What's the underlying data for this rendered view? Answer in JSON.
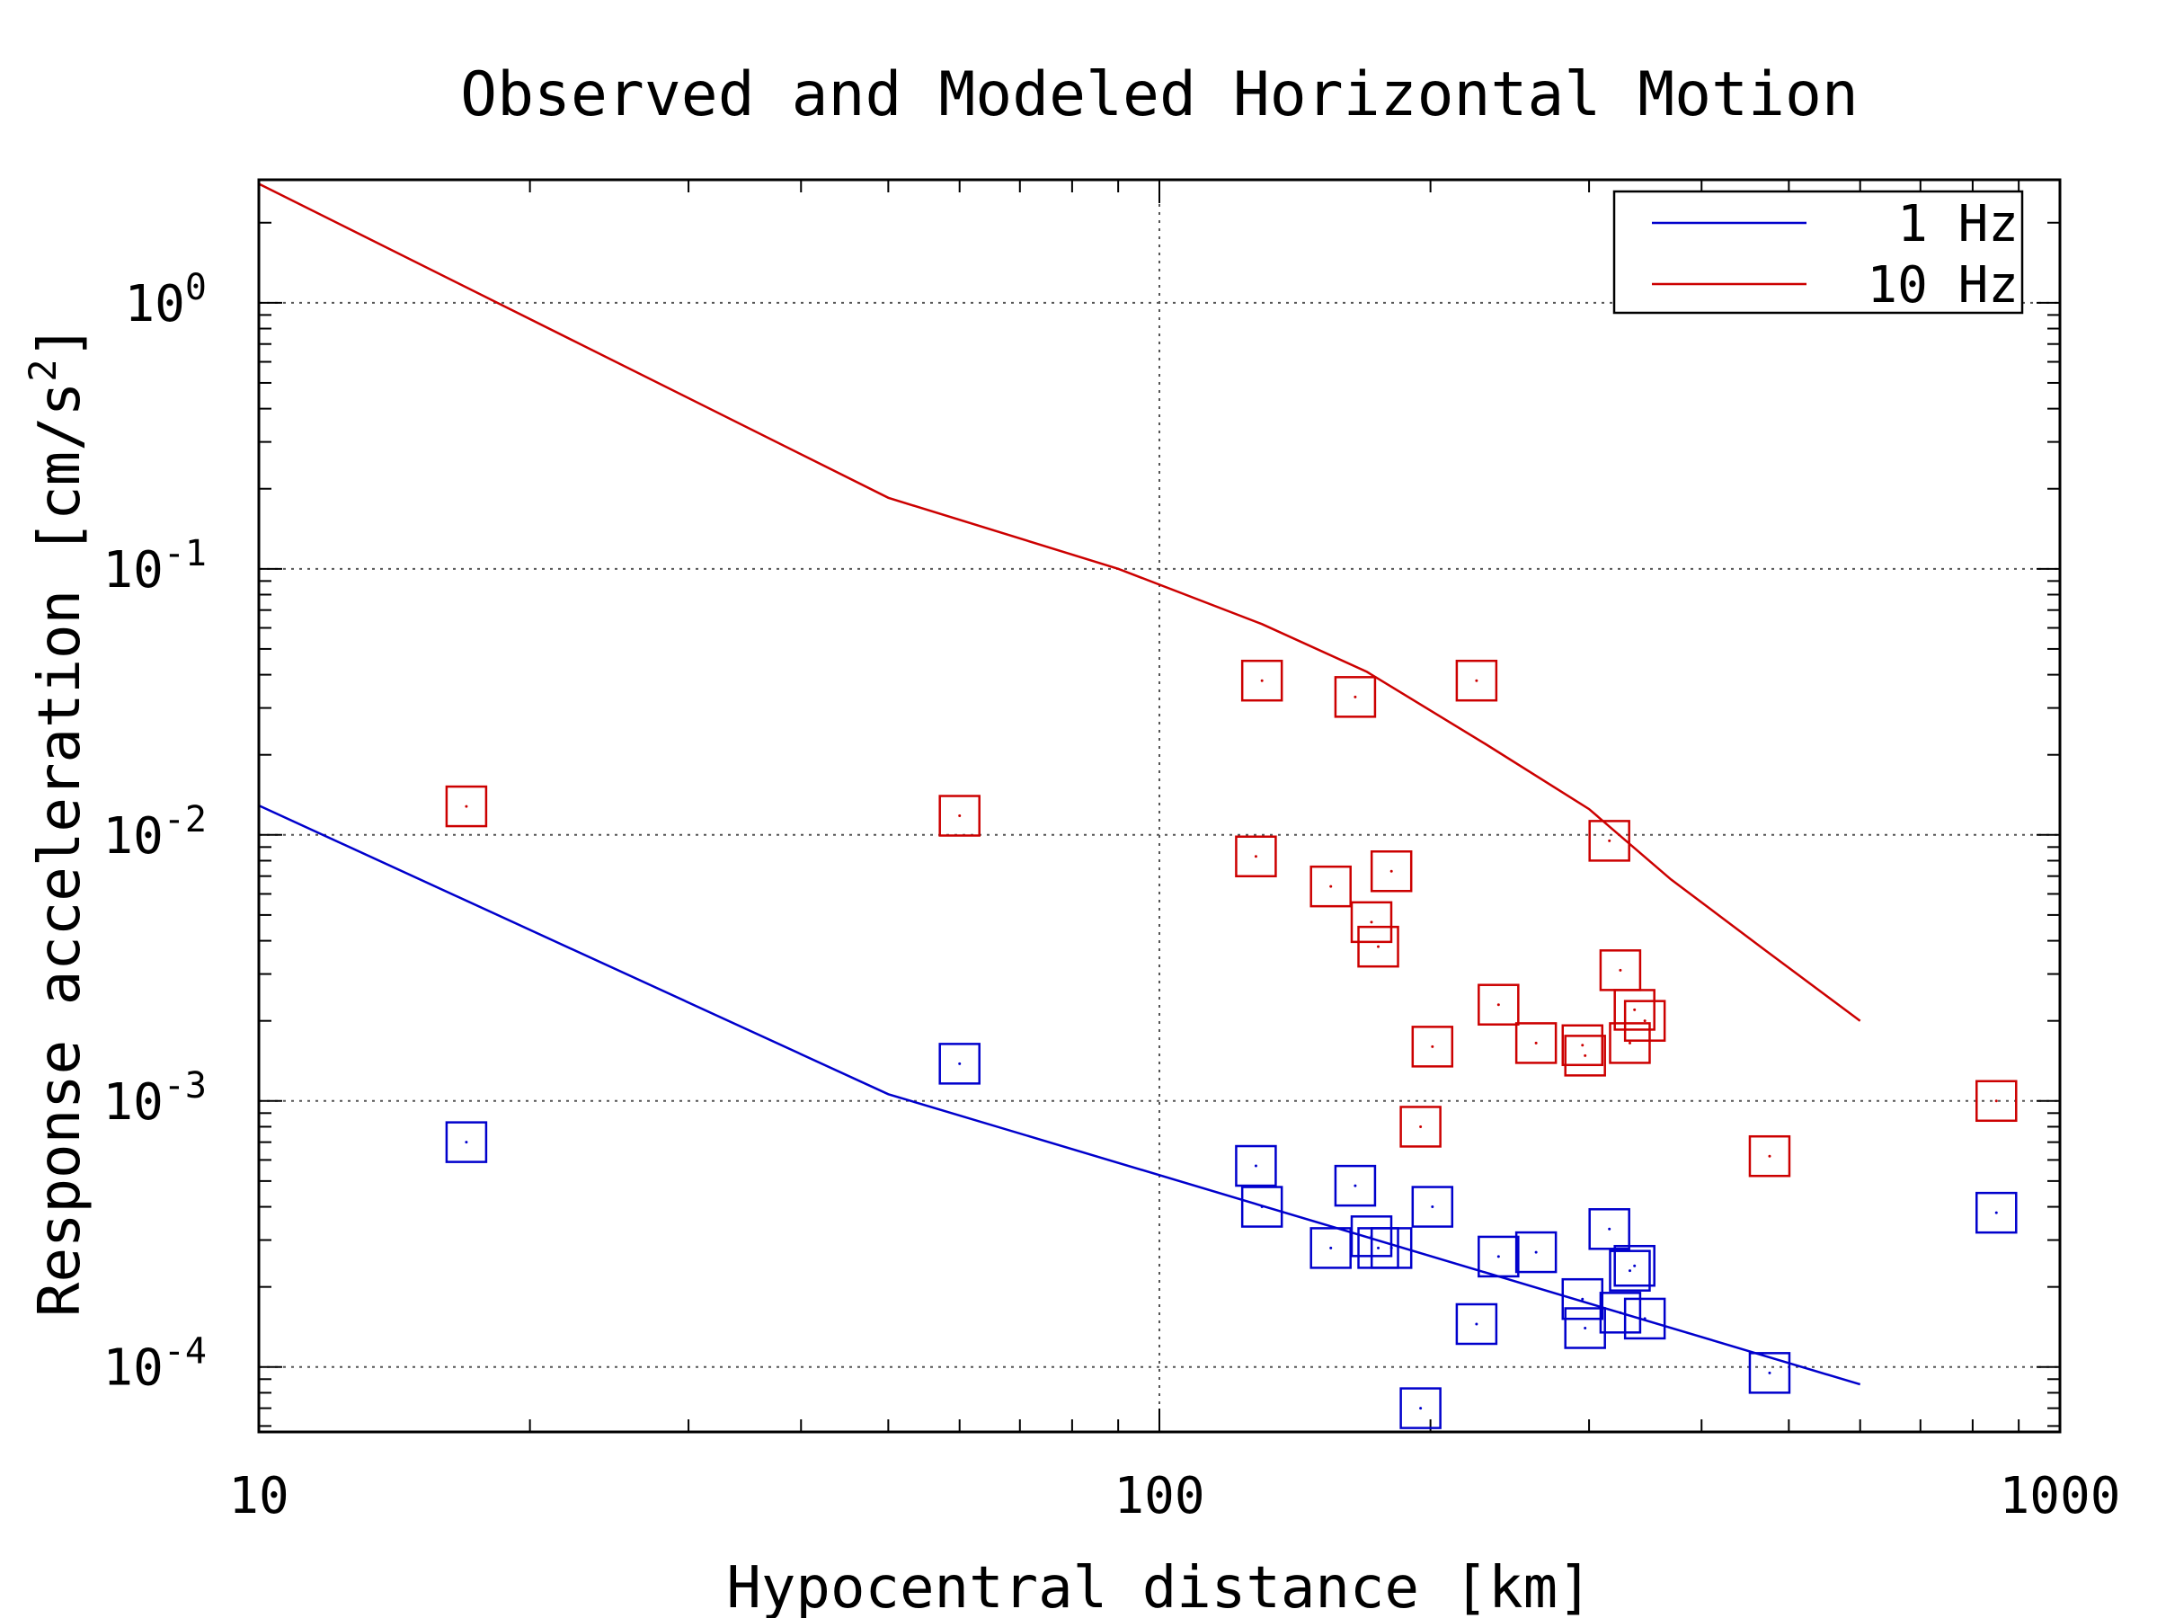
{
  "chart_data": {
    "type": "scatter",
    "title": "Observed and Modeled Horizontal Motion",
    "xlabel": "Hypocentral distance [km]",
    "ylabel_main": "Response acceleration [cm/s",
    "ylabel_sup": "2",
    "ylabel_end": "]",
    "x_scale": "log",
    "y_scale": "log",
    "xlim": [
      10,
      1000
    ],
    "ylim": [
      5.7e-05,
      2.9
    ],
    "x_ticks": [
      {
        "value": 10,
        "label": "10"
      },
      {
        "value": 100,
        "label": "100"
      },
      {
        "value": 1000,
        "label": "1000"
      }
    ],
    "y_ticks": [
      {
        "value": 0.0001,
        "base": "10",
        "exp": "-4"
      },
      {
        "value": 0.001,
        "base": "10",
        "exp": "-3"
      },
      {
        "value": 0.01,
        "base": "10",
        "exp": "-2"
      },
      {
        "value": 0.1,
        "base": "10",
        "exp": "-1"
      },
      {
        "value": 1,
        "base": "10",
        "exp": "0"
      }
    ],
    "grid": "dotted",
    "legend_position": "top-right",
    "series": [
      {
        "name": "1 Hz",
        "color": "#0000cc",
        "kind": "line",
        "x": [
          10,
          50,
          600
        ],
        "y": [
          0.0129,
          0.00106,
          8.6e-05
        ]
      },
      {
        "name": "10 Hz",
        "color": "#cc0000",
        "kind": "line",
        "x": [
          10,
          50,
          90,
          130,
          170,
          230,
          300,
          370,
          470,
          600
        ],
        "y": [
          2.8,
          0.185,
          0.1,
          0.062,
          0.041,
          0.022,
          0.0125,
          0.0068,
          0.0037,
          0.002
        ]
      }
    ],
    "observed": [
      {
        "color": "#0000cc",
        "x": [
          17,
          60,
          128,
          130,
          155,
          165,
          172,
          175,
          181,
          195,
          201,
          225,
          238,
          262,
          295,
          297,
          316,
          325,
          333,
          337,
          346,
          476,
          850
        ],
        "y": [
          0.0007,
          0.00138,
          0.00057,
          0.0004,
          0.00028,
          0.00048,
          0.00031,
          0.00028,
          0.00028,
          7e-05,
          0.0004,
          0.000145,
          0.00026,
          0.00027,
          0.00018,
          0.00014,
          0.00033,
          0.00016,
          0.00023,
          0.00024,
          0.000152,
          9.5e-05,
          0.00038
        ]
      },
      {
        "color": "#cc0000",
        "x": [
          17,
          60,
          128,
          130,
          155,
          165,
          172,
          175,
          181,
          195,
          201,
          225,
          238,
          262,
          295,
          297,
          316,
          325,
          333,
          337,
          346,
          476,
          850
        ],
        "y": [
          0.0128,
          0.0118,
          0.0083,
          0.038,
          0.0064,
          0.033,
          0.0047,
          0.0038,
          0.0073,
          0.0008,
          0.0016,
          0.038,
          0.0023,
          0.00165,
          0.00162,
          0.00148,
          0.0095,
          0.0031,
          0.00165,
          0.0022,
          0.002,
          0.00062,
          0.001
        ]
      }
    ]
  }
}
